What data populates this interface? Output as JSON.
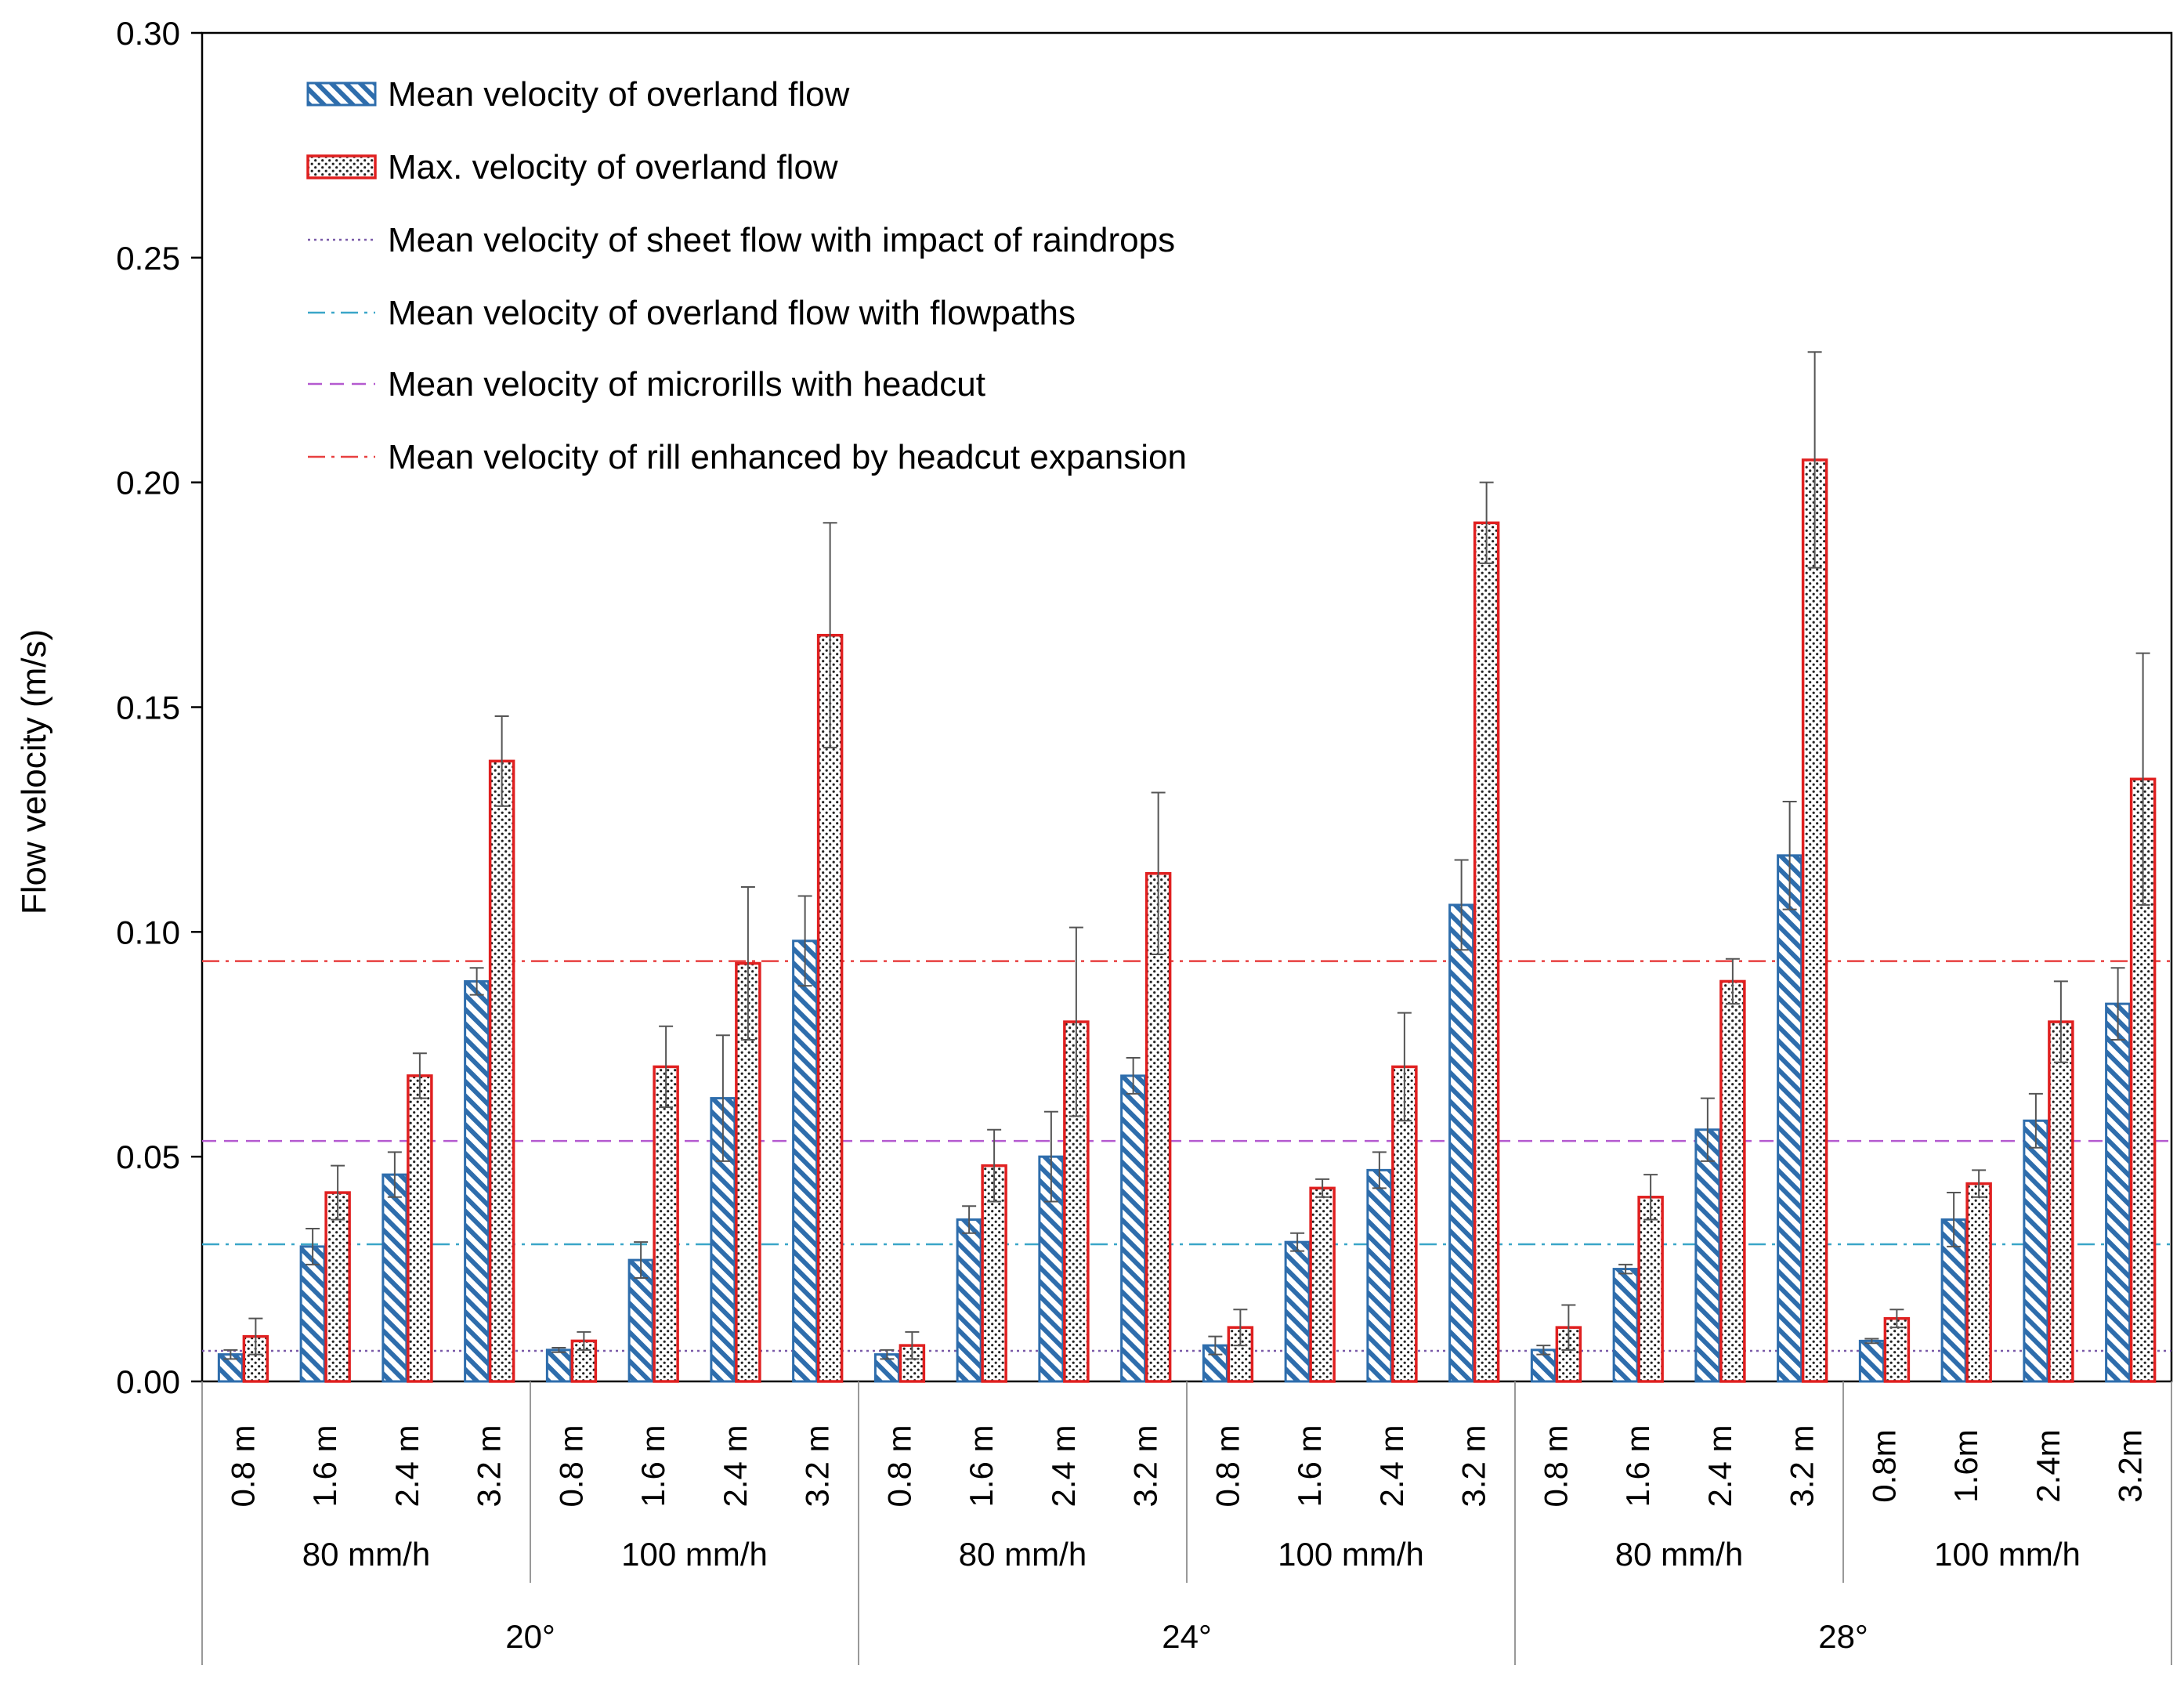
{
  "chart_data": {
    "type": "bar",
    "ylabel": "Flow velocity (m/s)",
    "ylim": [
      0,
      0.3
    ],
    "yticks": [
      "0.00",
      "0.05",
      "0.10",
      "0.15",
      "0.20",
      "0.25",
      "0.30"
    ],
    "grid": false,
    "legend_position": "top-left",
    "categories": [
      "0.8 m",
      "1.6 m",
      "2.4 m",
      "3.2 m",
      "0.8 m",
      "1.6 m",
      "2.4 m",
      "3.2 m",
      "0.8 m",
      "1.6 m",
      "2.4 m",
      "3.2 m",
      "0.8 m",
      "1.6 m",
      "2.4 m",
      "3.2 m",
      "0.8 m",
      "1.6 m",
      "2.4 m",
      "3.2 m",
      "0.8m",
      "1.6m",
      "2.4m",
      "3.2m"
    ],
    "rainfall_groups": [
      "80 mm/h",
      "100 mm/h",
      "80 mm/h",
      "100 mm/h",
      "80 mm/h",
      "100 mm/h"
    ],
    "slope_groups": [
      "20°",
      "24°",
      "28°"
    ],
    "series": [
      {
        "name": "Mean velocity of overland flow",
        "color": "#2e6dac",
        "values": [
          0.006,
          0.03,
          0.046,
          0.089,
          0.007,
          0.027,
          0.063,
          0.098,
          0.006,
          0.036,
          0.05,
          0.068,
          0.008,
          0.031,
          0.047,
          0.106,
          0.007,
          0.025,
          0.056,
          0.117,
          0.009,
          0.036,
          0.058,
          0.084
        ],
        "errors": [
          0.001,
          0.004,
          0.005,
          0.003,
          0.0005,
          0.004,
          0.014,
          0.01,
          0.001,
          0.003,
          0.01,
          0.004,
          0.002,
          0.002,
          0.004,
          0.01,
          0.001,
          0.001,
          0.007,
          0.012,
          0.0005,
          0.006,
          0.006,
          0.008
        ]
      },
      {
        "name": "Max. velocity of overland flow",
        "color": "#e02020",
        "values": [
          0.01,
          0.042,
          0.068,
          0.138,
          0.009,
          0.07,
          0.093,
          0.166,
          0.008,
          0.048,
          0.08,
          0.113,
          0.012,
          0.043,
          0.07,
          0.191,
          0.012,
          0.041,
          0.089,
          0.205,
          0.014,
          0.044,
          0.08,
          0.134
        ],
        "errors": [
          0.004,
          0.006,
          0.005,
          0.01,
          0.002,
          0.009,
          0.017,
          0.025,
          0.003,
          0.008,
          0.021,
          0.018,
          0.004,
          0.002,
          0.012,
          0.009,
          0.005,
          0.005,
          0.005,
          0.024,
          0.002,
          0.003,
          0.009,
          0.028
        ]
      }
    ],
    "reference_lines": [
      {
        "name": "Mean velocity of sheet flow with impact of raindrops",
        "value": 0.0068,
        "color": "#7a5aa8",
        "style": "dotted"
      },
      {
        "name": "Mean velocity of overland flow with flowpaths",
        "value": 0.0305,
        "color": "#3aa6c8",
        "style": "dash-dot"
      },
      {
        "name": "Mean velocity of microrills with headcut",
        "value": 0.0535,
        "color": "#b45ad0",
        "style": "dashed"
      },
      {
        "name": "Mean velocity of rill enhanced by headcut expansion",
        "value": 0.0935,
        "color": "#e84040",
        "style": "dash-dot"
      }
    ]
  }
}
